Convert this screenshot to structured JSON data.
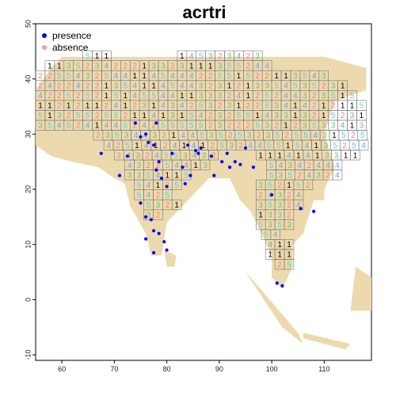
{
  "chart_data": {
    "type": "scatter",
    "title": "acrtri",
    "xlabel": "",
    "ylabel": "",
    "xlim": [
      55,
      119
    ],
    "ylim": [
      -11,
      50
    ],
    "x_ticks": [
      60,
      70,
      80,
      90,
      100,
      110
    ],
    "y_ticks": [
      -10,
      0,
      10,
      20,
      30,
      40,
      50
    ],
    "grid": false,
    "legend_position": "top-left",
    "legend": [
      {
        "name": "presence",
        "color": "#0000ff"
      },
      {
        "name": "absence",
        "color": "#ff9999"
      }
    ],
    "cell_colors": {
      "1": "#000000",
      "2": "#f08080",
      "3": "#6fbf6f",
      "4": "#6f9fd8",
      "5": "#66cccc"
    },
    "cell_step": 1.8,
    "grid_rows": [
      {
        "y": 44.2,
        "x0": 64.0,
        "values": [
          5,
          1,
          1,
          0,
          0,
          0,
          0,
          0,
          0,
          0,
          0,
          0,
          0,
          0,
          0,
          0,
          0,
          0,
          0,
          0,
          0,
          0,
          0
        ]
      },
      {
        "y": 44.2,
        "x0": 82.0,
        "values": [
          1,
          4,
          5,
          3,
          2,
          3,
          4,
          2,
          3
        ]
      },
      {
        "y": 42.4,
        "x0": 56.8,
        "values": [
          1,
          1,
          3,
          5,
          2,
          3,
          4,
          2,
          2,
          2,
          1,
          3,
          3,
          2,
          3,
          1,
          1,
          1,
          3,
          5,
          5,
          2,
          4,
          4
        ]
      },
      {
        "y": 40.6,
        "x0": 55.0,
        "values": [
          2,
          2,
          5,
          5,
          4,
          3,
          2,
          5,
          4,
          4,
          1,
          1,
          4,
          5,
          4,
          4,
          4,
          2,
          2,
          5,
          5,
          1,
          5,
          2,
          2,
          1,
          1,
          3,
          5,
          4,
          3
        ]
      },
      {
        "y": 38.8,
        "x0": 55.0,
        "values": [
          2,
          4,
          2,
          2,
          4,
          2,
          2,
          1,
          3,
          5,
          4,
          1,
          1,
          4,
          5,
          4,
          4,
          3,
          2,
          3,
          1,
          2,
          1,
          3,
          3,
          5,
          4,
          5,
          3,
          5,
          2,
          3,
          1
        ]
      },
      {
        "y": 37.0,
        "x0": 53.2,
        "values": [
          2,
          4,
          2,
          2,
          5,
          2,
          5,
          2,
          1,
          5,
          1,
          4,
          5,
          5,
          4,
          4,
          1,
          1,
          3,
          3,
          3,
          2,
          4,
          1,
          2,
          5,
          2,
          4,
          4,
          3,
          2,
          3,
          5,
          1,
          5
        ]
      },
      {
        "y": 35.2,
        "x0": 53.2,
        "values": [
          3,
          1,
          1,
          2,
          1,
          2,
          1,
          1,
          2,
          4,
          1,
          2,
          3,
          1,
          4,
          3,
          4,
          2,
          5,
          3,
          2,
          3,
          1,
          2,
          2,
          5,
          3,
          4,
          1,
          4,
          2,
          1,
          2,
          1,
          1,
          5
        ]
      },
      {
        "y": 33.4,
        "x0": 53.2,
        "values": [
          3,
          5,
          1,
          3,
          2,
          5,
          5,
          2,
          5,
          5,
          2,
          1,
          1,
          4,
          1,
          3,
          1,
          5,
          4,
          2,
          3,
          2,
          5,
          5,
          1,
          4,
          3,
          3,
          1,
          3,
          2,
          1,
          5,
          2,
          3,
          1,
          3,
          5
        ]
      },
      {
        "y": 31.6,
        "x0": 55.0,
        "values": [
          3,
          5,
          4,
          5,
          2,
          4,
          1,
          4,
          4,
          5,
          2,
          4,
          2,
          5,
          5,
          5,
          5,
          5,
          2,
          3,
          2,
          2,
          2,
          5,
          3,
          2,
          1,
          2,
          3,
          5,
          3,
          3,
          4,
          1,
          3,
          4,
          2,
          5
        ]
      },
      {
        "y": 29.8,
        "x0": 66.0,
        "values": [
          2,
          3,
          5,
          3,
          4,
          4,
          3,
          2,
          1,
          4,
          4,
          5,
          3,
          5,
          2,
          5,
          3,
          2,
          3,
          5,
          2,
          5,
          5,
          4,
          3,
          1,
          5,
          2,
          5,
          5,
          1,
          4,
          1,
          1
        ]
      },
      {
        "y": 28.0,
        "x0": 68.0,
        "values": [
          4,
          2,
          5,
          1,
          4,
          1,
          2,
          4,
          1,
          4,
          1,
          2,
          5,
          3,
          2,
          4,
          4,
          5,
          5,
          1,
          5,
          4,
          1,
          3,
          5,
          2,
          5,
          4,
          1,
          4,
          1,
          2
        ]
      },
      {
        "y": 26.2,
        "x0": 70.0,
        "values": [
          2,
          4,
          3,
          2,
          4,
          5,
          5,
          3,
          4,
          3,
          2,
          0,
          0,
          0,
          0,
          1,
          1,
          1,
          4,
          1,
          4,
          1,
          3,
          3,
          1,
          1
        ]
      },
      {
        "y": 24.4,
        "x0": 72.0,
        "values": [
          4,
          3,
          2,
          2,
          5,
          4,
          4,
          1,
          3,
          0,
          0,
          0,
          0,
          0,
          0,
          5,
          4,
          3,
          4,
          2,
          4,
          4,
          4
        ]
      },
      {
        "y": 22.6,
        "x0": 72.0,
        "values": [
          3,
          3,
          5,
          4,
          1,
          1,
          5,
          0,
          0,
          0,
          0,
          0,
          0,
          0,
          0,
          5,
          3,
          5,
          2,
          4,
          3,
          2,
          4
        ]
      },
      {
        "y": 20.8,
        "x0": 73.8,
        "values": [
          5,
          4,
          1,
          2,
          5
        ]
      },
      {
        "y": 20.8,
        "x0": 97.0,
        "values": [
          3,
          5,
          2,
          1,
          5,
          2
        ]
      },
      {
        "y": 19.0,
        "x0": 73.8,
        "values": [
          5,
          4,
          2,
          5
        ]
      },
      {
        "y": 19.0,
        "x0": 97.0,
        "values": [
          2,
          4,
          3,
          2,
          4
        ]
      },
      {
        "y": 17.2,
        "x0": 75.6,
        "values": [
          5,
          3,
          2,
          1
        ]
      },
      {
        "y": 17.2,
        "x0": 97.0,
        "values": [
          3,
          5,
          3,
          2,
          4
        ]
      },
      {
        "y": 15.4,
        "x0": 75.6,
        "values": [
          3,
          2
        ]
      },
      {
        "y": 15.4,
        "x0": 97.0,
        "values": [
          1,
          3,
          3,
          2
        ]
      },
      {
        "y": 13.6,
        "x0": 97.0,
        "values": [
          5,
          3,
          5,
          3
        ]
      },
      {
        "y": 11.8,
        "x0": 98.0,
        "values": [
          5,
          4
        ]
      },
      {
        "y": 10.0,
        "x0": 98.8,
        "values": [
          4,
          1,
          1
        ]
      },
      {
        "y": 8.2,
        "x0": 98.8,
        "values": [
          1,
          1,
          1
        ]
      },
      {
        "y": 6.4,
        "x0": 100.6,
        "values": [
          2,
          5
        ]
      }
    ],
    "presence": [
      [
        67.5,
        26.5
      ],
      [
        71.0,
        22.5
      ],
      [
        72.5,
        26.0
      ],
      [
        74.0,
        32.0
      ],
      [
        75.0,
        29.5
      ],
      [
        76.5,
        28.5
      ],
      [
        77.5,
        28.0
      ],
      [
        78.0,
        23.5
      ],
      [
        78.5,
        25.0
      ],
      [
        79.0,
        22.0
      ],
      [
        80.0,
        20.5
      ],
      [
        81.0,
        26.5
      ],
      [
        83.0,
        24.0
      ],
      [
        84.0,
        28.0
      ],
      [
        85.5,
        27.0
      ],
      [
        86.0,
        26.5
      ],
      [
        86.5,
        27.5
      ],
      [
        88.5,
        26.0
      ],
      [
        89.0,
        22.5
      ],
      [
        90.5,
        25.0
      ],
      [
        91.5,
        26.5
      ],
      [
        92.0,
        24.0
      ],
      [
        93.0,
        25.0
      ],
      [
        94.0,
        24.5
      ],
      [
        95.0,
        27.5
      ],
      [
        96.5,
        24.0
      ],
      [
        100.0,
        19.0
      ],
      [
        105.5,
        16.5
      ],
      [
        108.0,
        16.0
      ],
      [
        75.0,
        17.5
      ],
      [
        76.0,
        15.0
      ],
      [
        77.0,
        14.5
      ],
      [
        77.5,
        12.5
      ],
      [
        78.5,
        12.0
      ],
      [
        79.5,
        10.5
      ],
      [
        77.5,
        8.5
      ],
      [
        76.0,
        11.0
      ],
      [
        80.0,
        9.0
      ],
      [
        101.0,
        3.0
      ],
      [
        102.0,
        2.5
      ],
      [
        76.0,
        30.0
      ],
      [
        78.0,
        32.0
      ],
      [
        83.5,
        21.0
      ],
      [
        84.5,
        22.5
      ]
    ]
  }
}
